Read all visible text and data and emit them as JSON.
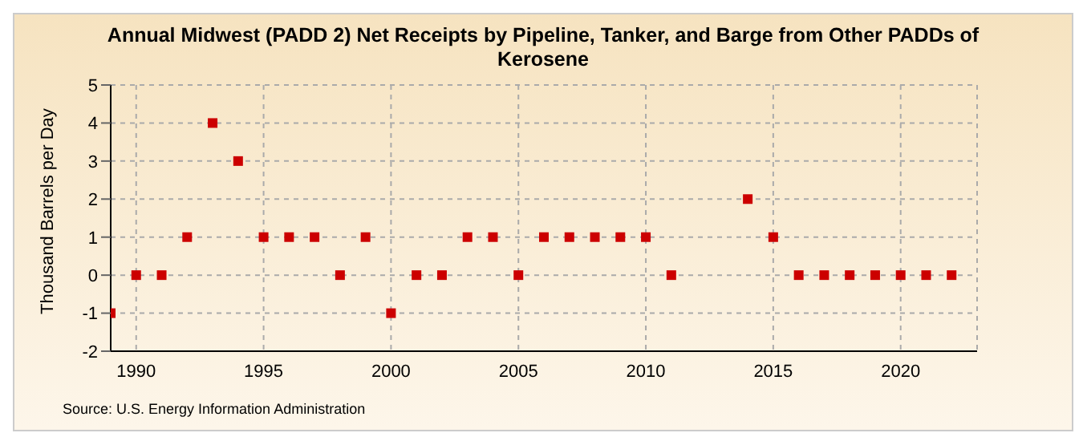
{
  "chart_data": {
    "type": "scatter",
    "title": "Annual Midwest (PADD 2) Net Receipts by Pipeline, Tanker, and Barge from Other PADDs of Kerosene",
    "ylabel": "Thousand Barrels per Day",
    "annotations": [
      "Source: U.S. Energy Information Administration"
    ],
    "x": [
      1989,
      1990,
      1991,
      1992,
      1993,
      1994,
      1995,
      1996,
      1997,
      1998,
      1999,
      2000,
      2001,
      2002,
      2003,
      2004,
      2005,
      2006,
      2007,
      2008,
      2009,
      2010,
      2011,
      2014,
      2015,
      2016,
      2017,
      2018,
      2019,
      2020,
      2021,
      2022
    ],
    "series": [
      {
        "color": "#cc0000",
        "values": [
          -1,
          0,
          0,
          1,
          4,
          3,
          1,
          1,
          1,
          0,
          1,
          -1,
          0,
          0,
          1,
          1,
          0,
          1,
          1,
          1,
          1,
          1,
          0,
          2,
          1,
          0,
          0,
          0,
          0,
          0,
          0,
          0
        ]
      }
    ],
    "xlim": [
      1989,
      2023
    ],
    "xticks": [
      1990,
      1995,
      2000,
      2005,
      2010,
      2015,
      2020
    ],
    "ylim": [
      -2,
      5
    ],
    "yticks": [
      -2,
      -1,
      0,
      1,
      2,
      3,
      4,
      5
    ],
    "grid": true,
    "marker": "square"
  }
}
